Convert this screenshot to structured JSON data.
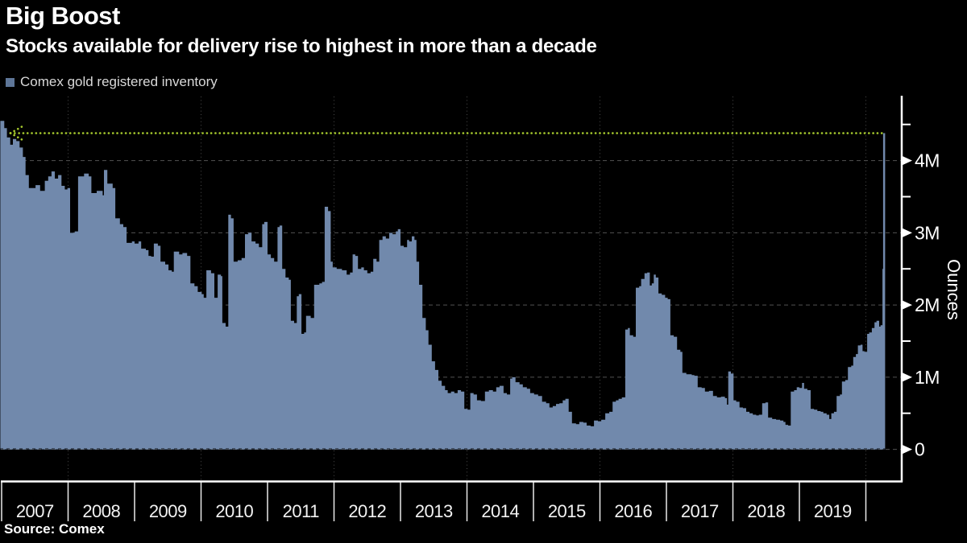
{
  "header": {
    "title": "Big Boost",
    "subtitle": "Stocks available for delivery rise to highest in more than a decade"
  },
  "legend": {
    "label": "Comex gold registered inventory",
    "swatch_color": "#5e7698"
  },
  "source": {
    "text": "Source: Comex"
  },
  "chart_data": {
    "type": "area",
    "title": "Big Boost",
    "subtitle": "Stocks available for delivery rise to highest in more than a decade",
    "series_name": "Comex gold registered inventory",
    "unit": "million ounces",
    "ylabel": "Ounces",
    "ylim": [
      0,
      4.9
    ],
    "y_ticks_major": [
      0,
      1,
      2,
      3,
      4
    ],
    "y_tick_labels": [
      "0",
      "1M",
      "2M",
      "3M",
      "4M"
    ],
    "y_ticks_minor": [
      0.5,
      1.5,
      2.5,
      3.5,
      4.5
    ],
    "x_year_boundaries": [
      2007,
      2008,
      2009,
      2010,
      2011,
      2012,
      2013,
      2014,
      2015,
      2016,
      2017,
      2018,
      2019,
      2020
    ],
    "x_tick_labels": [
      "2007",
      "2008",
      "2009",
      "2010",
      "2011",
      "2012",
      "2013",
      "2014",
      "2015",
      "2016",
      "2017",
      "2018",
      "2019"
    ],
    "x_grid_years": [
      2008,
      2010,
      2012,
      2014,
      2016,
      2018,
      2020
    ],
    "xlim": [
      2006.98,
      2020.29
    ],
    "grid": true,
    "legend_position": "top-left",
    "annotation": {
      "type": "dotted-arrow-left",
      "value_m": 4.38,
      "color": "#a8cc2e"
    },
    "colors": {
      "area": "#7189ac",
      "axis": "#ffffff",
      "grid": "#525252",
      "background": "#000000"
    },
    "points": [
      [
        2006.98,
        4.55
      ],
      [
        2007.04,
        4.45
      ],
      [
        2007.08,
        4.32
      ],
      [
        2007.13,
        4.22
      ],
      [
        2007.17,
        4.3
      ],
      [
        2007.22,
        4.27
      ],
      [
        2007.27,
        4.18
      ],
      [
        2007.32,
        4.05
      ],
      [
        2007.36,
        3.8
      ],
      [
        2007.41,
        3.62
      ],
      [
        2007.51,
        3.66
      ],
      [
        2007.58,
        3.58
      ],
      [
        2007.65,
        3.72
      ],
      [
        2007.7,
        3.78
      ],
      [
        2007.75,
        3.85
      ],
      [
        2007.8,
        3.75
      ],
      [
        2007.85,
        3.8
      ],
      [
        2007.9,
        3.65
      ],
      [
        2007.95,
        3.6
      ],
      [
        2007.99,
        3.62
      ],
      [
        2008.03,
        3.0
      ],
      [
        2008.1,
        3.02
      ],
      [
        2008.15,
        3.78
      ],
      [
        2008.24,
        3.82
      ],
      [
        2008.31,
        3.78
      ],
      [
        2008.35,
        3.55
      ],
      [
        2008.43,
        3.58
      ],
      [
        2008.52,
        3.52
      ],
      [
        2008.54,
        3.87
      ],
      [
        2008.59,
        3.68
      ],
      [
        2008.67,
        3.62
      ],
      [
        2008.71,
        3.2
      ],
      [
        2008.78,
        3.12
      ],
      [
        2008.83,
        3.08
      ],
      [
        2008.88,
        2.86
      ],
      [
        2008.96,
        2.88
      ],
      [
        2009.0,
        2.85
      ],
      [
        2009.06,
        2.88
      ],
      [
        2009.1,
        2.78
      ],
      [
        2009.17,
        2.76
      ],
      [
        2009.21,
        2.68
      ],
      [
        2009.25,
        2.67
      ],
      [
        2009.29,
        2.85
      ],
      [
        2009.35,
        2.82
      ],
      [
        2009.39,
        2.6
      ],
      [
        2009.46,
        2.56
      ],
      [
        2009.51,
        2.48
      ],
      [
        2009.56,
        2.46
      ],
      [
        2009.59,
        2.74
      ],
      [
        2009.67,
        2.7
      ],
      [
        2009.72,
        2.72
      ],
      [
        2009.79,
        2.68
      ],
      [
        2009.84,
        2.3
      ],
      [
        2009.9,
        2.26
      ],
      [
        2009.95,
        2.18
      ],
      [
        2010.01,
        2.15
      ],
      [
        2010.04,
        2.1
      ],
      [
        2010.08,
        2.48
      ],
      [
        2010.15,
        2.44
      ],
      [
        2010.2,
        2.1
      ],
      [
        2010.25,
        2.42
      ],
      [
        2010.3,
        2.4
      ],
      [
        2010.32,
        1.75
      ],
      [
        2010.37,
        1.7
      ],
      [
        2010.41,
        3.25
      ],
      [
        2010.45,
        3.2
      ],
      [
        2010.49,
        2.6
      ],
      [
        2010.55,
        2.62
      ],
      [
        2010.61,
        2.65
      ],
      [
        2010.66,
        2.98
      ],
      [
        2010.71,
        3.0
      ],
      [
        2010.76,
        2.88
      ],
      [
        2010.82,
        2.85
      ],
      [
        2010.87,
        2.8
      ],
      [
        2010.92,
        3.12
      ],
      [
        2010.95,
        3.15
      ],
      [
        2011.0,
        2.7
      ],
      [
        2011.05,
        2.65
      ],
      [
        2011.1,
        2.6
      ],
      [
        2011.15,
        3.08
      ],
      [
        2011.18,
        3.1
      ],
      [
        2011.22,
        2.5
      ],
      [
        2011.27,
        2.38
      ],
      [
        2011.32,
        2.35
      ],
      [
        2011.35,
        1.78
      ],
      [
        2011.4,
        1.75
      ],
      [
        2011.44,
        2.12
      ],
      [
        2011.47,
        2.15
      ],
      [
        2011.51,
        1.6
      ],
      [
        2011.55,
        1.62
      ],
      [
        2011.58,
        1.85
      ],
      [
        2011.65,
        1.82
      ],
      [
        2011.7,
        2.28
      ],
      [
        2011.78,
        2.3
      ],
      [
        2011.82,
        2.32
      ],
      [
        2011.86,
        3.36
      ],
      [
        2011.91,
        3.3
      ],
      [
        2011.95,
        2.6
      ],
      [
        2011.98,
        2.52
      ],
      [
        2012.04,
        2.5
      ],
      [
        2012.12,
        2.48
      ],
      [
        2012.19,
        2.42
      ],
      [
        2012.24,
        2.45
      ],
      [
        2012.28,
        2.7
      ],
      [
        2012.32,
        2.68
      ],
      [
        2012.36,
        2.5
      ],
      [
        2012.41,
        2.52
      ],
      [
        2012.45,
        2.48
      ],
      [
        2012.5,
        2.44
      ],
      [
        2012.55,
        2.46
      ],
      [
        2012.59,
        2.64
      ],
      [
        2012.64,
        2.6
      ],
      [
        2012.68,
        2.9
      ],
      [
        2012.73,
        2.95
      ],
      [
        2012.78,
        2.92
      ],
      [
        2012.83,
        3.0
      ],
      [
        2012.88,
        2.98
      ],
      [
        2012.93,
        3.02
      ],
      [
        2012.96,
        3.05
      ],
      [
        2013.0,
        2.82
      ],
      [
        2013.05,
        2.8
      ],
      [
        2013.1,
        2.9
      ],
      [
        2013.13,
        2.88
      ],
      [
        2013.17,
        2.95
      ],
      [
        2013.21,
        2.9
      ],
      [
        2013.24,
        2.6
      ],
      [
        2013.28,
        2.28
      ],
      [
        2013.33,
        1.82
      ],
      [
        2013.38,
        1.65
      ],
      [
        2013.42,
        1.45
      ],
      [
        2013.47,
        1.22
      ],
      [
        2013.52,
        1.1
      ],
      [
        2013.57,
        0.95
      ],
      [
        2013.62,
        0.88
      ],
      [
        2013.67,
        0.82
      ],
      [
        2013.71,
        0.78
      ],
      [
        2013.76,
        0.8
      ],
      [
        2013.81,
        0.78
      ],
      [
        2013.86,
        0.82
      ],
      [
        2013.91,
        0.8
      ],
      [
        2013.96,
        0.56
      ],
      [
        2014.01,
        0.55
      ],
      [
        2014.05,
        0.78
      ],
      [
        2014.1,
        0.76
      ],
      [
        2014.15,
        0.68
      ],
      [
        2014.21,
        0.67
      ],
      [
        2014.27,
        0.8
      ],
      [
        2014.33,
        0.82
      ],
      [
        2014.39,
        0.8
      ],
      [
        2014.44,
        0.86
      ],
      [
        2014.49,
        0.88
      ],
      [
        2014.55,
        0.78
      ],
      [
        2014.6,
        0.76
      ],
      [
        2014.65,
        0.98
      ],
      [
        2014.68,
        1.0
      ],
      [
        2014.73,
        0.93
      ],
      [
        2014.79,
        0.9
      ],
      [
        2014.84,
        0.86
      ],
      [
        2014.9,
        0.84
      ],
      [
        2014.95,
        0.78
      ],
      [
        2015.01,
        0.76
      ],
      [
        2015.07,
        0.74
      ],
      [
        2015.13,
        0.66
      ],
      [
        2015.19,
        0.64
      ],
      [
        2015.24,
        0.58
      ],
      [
        2015.29,
        0.6
      ],
      [
        2015.34,
        0.63
      ],
      [
        2015.39,
        0.64
      ],
      [
        2015.44,
        0.68
      ],
      [
        2015.48,
        0.7
      ],
      [
        2015.53,
        0.52
      ],
      [
        2015.58,
        0.36
      ],
      [
        2015.64,
        0.35
      ],
      [
        2015.69,
        0.38
      ],
      [
        2015.75,
        0.37
      ],
      [
        2015.8,
        0.33
      ],
      [
        2015.86,
        0.32
      ],
      [
        2015.91,
        0.4
      ],
      [
        2015.97,
        0.39
      ],
      [
        2016.02,
        0.41
      ],
      [
        2016.08,
        0.5
      ],
      [
        2016.14,
        0.52
      ],
      [
        2016.19,
        0.66
      ],
      [
        2016.24,
        0.68
      ],
      [
        2016.28,
        0.7
      ],
      [
        2016.33,
        0.72
      ],
      [
        2016.38,
        1.66
      ],
      [
        2016.42,
        1.68
      ],
      [
        2016.45,
        1.58
      ],
      [
        2016.5,
        1.56
      ],
      [
        2016.54,
        2.24
      ],
      [
        2016.59,
        2.26
      ],
      [
        2016.62,
        2.36
      ],
      [
        2016.67,
        2.44
      ],
      [
        2016.71,
        2.45
      ],
      [
        2016.75,
        2.27
      ],
      [
        2016.78,
        2.3
      ],
      [
        2016.81,
        2.42
      ],
      [
        2016.84,
        2.38
      ],
      [
        2016.88,
        2.16
      ],
      [
        2016.93,
        2.14
      ],
      [
        2016.98,
        2.1
      ],
      [
        2017.02,
        2.08
      ],
      [
        2017.06,
        1.58
      ],
      [
        2017.11,
        1.56
      ],
      [
        2017.16,
        1.38
      ],
      [
        2017.21,
        1.35
      ],
      [
        2017.24,
        1.06
      ],
      [
        2017.3,
        1.04
      ],
      [
        2017.38,
        1.03
      ],
      [
        2017.42,
        1.02
      ],
      [
        2017.47,
        0.86
      ],
      [
        2017.53,
        0.85
      ],
      [
        2017.58,
        0.8
      ],
      [
        2017.64,
        0.81
      ],
      [
        2017.7,
        0.74
      ],
      [
        2017.76,
        0.72
      ],
      [
        2017.82,
        0.73
      ],
      [
        2017.88,
        0.71
      ],
      [
        2017.91,
        0.62
      ],
      [
        2017.93,
        1.08
      ],
      [
        2017.97,
        1.05
      ],
      [
        2018.01,
        0.68
      ],
      [
        2018.05,
        0.66
      ],
      [
        2018.1,
        0.58
      ],
      [
        2018.15,
        0.57
      ],
      [
        2018.2,
        0.52
      ],
      [
        2018.25,
        0.5
      ],
      [
        2018.3,
        0.48
      ],
      [
        2018.35,
        0.47
      ],
      [
        2018.39,
        0.48
      ],
      [
        2018.44,
        0.64
      ],
      [
        2018.49,
        0.65
      ],
      [
        2018.53,
        0.44
      ],
      [
        2018.59,
        0.42
      ],
      [
        2018.65,
        0.41
      ],
      [
        2018.71,
        0.4
      ],
      [
        2018.76,
        0.38
      ],
      [
        2018.79,
        0.34
      ],
      [
        2018.83,
        0.33
      ],
      [
        2018.87,
        0.8
      ],
      [
        2018.92,
        0.82
      ],
      [
        2018.96,
        0.86
      ],
      [
        2019.0,
        0.85
      ],
      [
        2019.04,
        0.92
      ],
      [
        2019.07,
        0.84
      ],
      [
        2019.12,
        0.82
      ],
      [
        2019.17,
        0.56
      ],
      [
        2019.22,
        0.55
      ],
      [
        2019.27,
        0.53
      ],
      [
        2019.32,
        0.52
      ],
      [
        2019.36,
        0.5
      ],
      [
        2019.41,
        0.48
      ],
      [
        2019.45,
        0.42
      ],
      [
        2019.48,
        0.5
      ],
      [
        2019.52,
        0.52
      ],
      [
        2019.56,
        0.74
      ],
      [
        2019.61,
        0.76
      ],
      [
        2019.64,
        0.94
      ],
      [
        2019.69,
        0.96
      ],
      [
        2019.73,
        1.14
      ],
      [
        2019.78,
        1.16
      ],
      [
        2019.81,
        1.28
      ],
      [
        2019.85,
        1.32
      ],
      [
        2019.88,
        1.44
      ],
      [
        2019.92,
        1.45
      ],
      [
        2019.95,
        1.36
      ],
      [
        2019.98,
        1.35
      ],
      [
        2020.02,
        1.6
      ],
      [
        2020.05,
        1.62
      ],
      [
        2020.09,
        1.68
      ],
      [
        2020.13,
        1.76
      ],
      [
        2020.16,
        1.78
      ],
      [
        2020.2,
        1.7
      ],
      [
        2020.22,
        1.72
      ],
      [
        2020.25,
        2.5
      ],
      [
        2020.26,
        4.38
      ],
      [
        2020.29,
        4.38
      ]
    ]
  }
}
